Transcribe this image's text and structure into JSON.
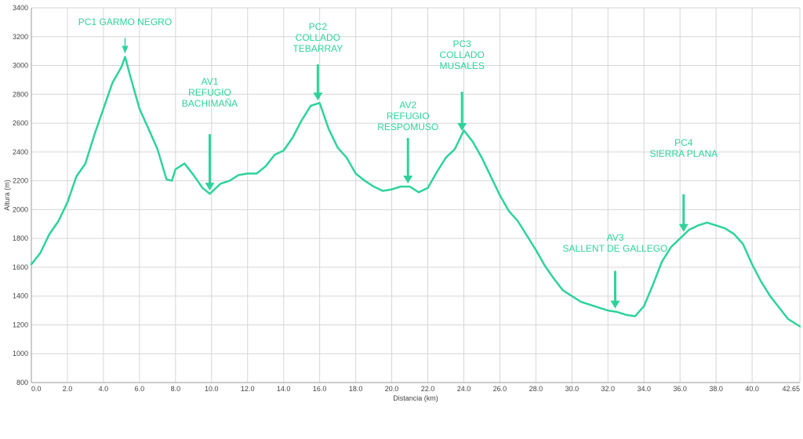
{
  "chart_data": {
    "type": "line",
    "xlabel": "Distancia (km)",
    "ylabel": "Altura (m)",
    "xlim": [
      0,
      42.65
    ],
    "ylim": [
      800,
      3400
    ],
    "grid": true,
    "line_color": "#2ed39a",
    "annotation_color": "#2ed39a",
    "x_ticks": [
      0,
      2,
      4,
      6,
      8,
      10,
      12,
      14,
      16,
      18,
      20,
      22,
      24,
      26,
      28,
      30,
      32,
      34,
      36,
      38,
      40,
      42.65
    ],
    "x_tick_labels": [
      "0.0",
      "2.0",
      "4.0",
      "6.0",
      "8.0",
      "10.0",
      "12.0",
      "14.0",
      "16.0",
      "18.0",
      "20.0",
      "22.0",
      "24.0",
      "26.0",
      "28.0",
      "30.0",
      "32.0",
      "34.0",
      "36.0",
      "38.0",
      "40.0",
      "42.65"
    ],
    "y_ticks": [
      800,
      1000,
      1200,
      1400,
      1600,
      1800,
      2000,
      2200,
      2400,
      2600,
      2800,
      3000,
      3200,
      3400
    ],
    "y_tick_labels": [
      "800",
      "1000",
      "1200",
      "1400",
      "1600",
      "1800",
      "2000",
      "2200",
      "2400",
      "2600",
      "2800",
      "3000",
      "3200",
      "3400"
    ],
    "series": [
      {
        "x": [
          0,
          0.5,
          1,
          1.5,
          2,
          2.5,
          3,
          3.5,
          4,
          4.5,
          5,
          5.2,
          5.5,
          6,
          6.5,
          7,
          7.5,
          7.8,
          8,
          8.5,
          9,
          9.5,
          9.9,
          10.5,
          11,
          11.5,
          12,
          12.5,
          13,
          13.5,
          14,
          14.5,
          15,
          15.5,
          16,
          16.5,
          17,
          17.5,
          18,
          18.5,
          19,
          19.5,
          20,
          20.5,
          21,
          21.5,
          22,
          22.5,
          23,
          23.5,
          24,
          24.5,
          25,
          25.5,
          26,
          26.5,
          27,
          27.5,
          28,
          28.5,
          29,
          29.5,
          30,
          30.5,
          31,
          31.5,
          32,
          32.5,
          33,
          33.5,
          34,
          34.5,
          35,
          35.5,
          36,
          36.5,
          37,
          37.5,
          38,
          38.5,
          39,
          39.5,
          40,
          40.5,
          41,
          41.5,
          42,
          42.65
        ],
        "y": [
          1620,
          1700,
          1830,
          1920,
          2050,
          2230,
          2320,
          2520,
          2700,
          2880,
          2990,
          3060,
          2920,
          2700,
          2560,
          2420,
          2210,
          2200,
          2280,
          2320,
          2240,
          2150,
          2110,
          2180,
          2200,
          2240,
          2250,
          2250,
          2300,
          2380,
          2410,
          2500,
          2620,
          2720,
          2740,
          2560,
          2430,
          2360,
          2250,
          2200,
          2160,
          2130,
          2140,
          2160,
          2160,
          2120,
          2150,
          2260,
          2360,
          2420,
          2550,
          2470,
          2360,
          2230,
          2100,
          1990,
          1920,
          1820,
          1720,
          1610,
          1520,
          1440,
          1400,
          1360,
          1340,
          1320,
          1300,
          1290,
          1270,
          1260,
          1330,
          1480,
          1640,
          1740,
          1800,
          1860,
          1890,
          1910,
          1890,
          1870,
          1830,
          1760,
          1620,
          1500,
          1400,
          1320,
          1240,
          1190
        ]
      }
    ],
    "annotations": [
      {
        "lines": [
          "PC1 GARMO NEGRO"
        ],
        "x": 5.2
      },
      {
        "lines": [
          "AV1",
          "REFUGIO",
          "BACHIMAÑA"
        ],
        "x": 9.9
      },
      {
        "lines": [
          "PC2",
          "COLLADO",
          "TEBARRAY"
        ],
        "x": 15.9
      },
      {
        "lines": [
          "AV2",
          "REFUGIO",
          "RESPOMUSO"
        ],
        "x": 20.9
      },
      {
        "lines": [
          "PC3",
          "COLLADO",
          "MUSALES"
        ],
        "x": 23.9
      },
      {
        "lines": [
          "AV3",
          "SALLENT DE GALLEGO"
        ],
        "x": 32.4
      },
      {
        "lines": [
          "PC4",
          "SIERRA PLANA"
        ],
        "x": 36.2
      }
    ]
  }
}
